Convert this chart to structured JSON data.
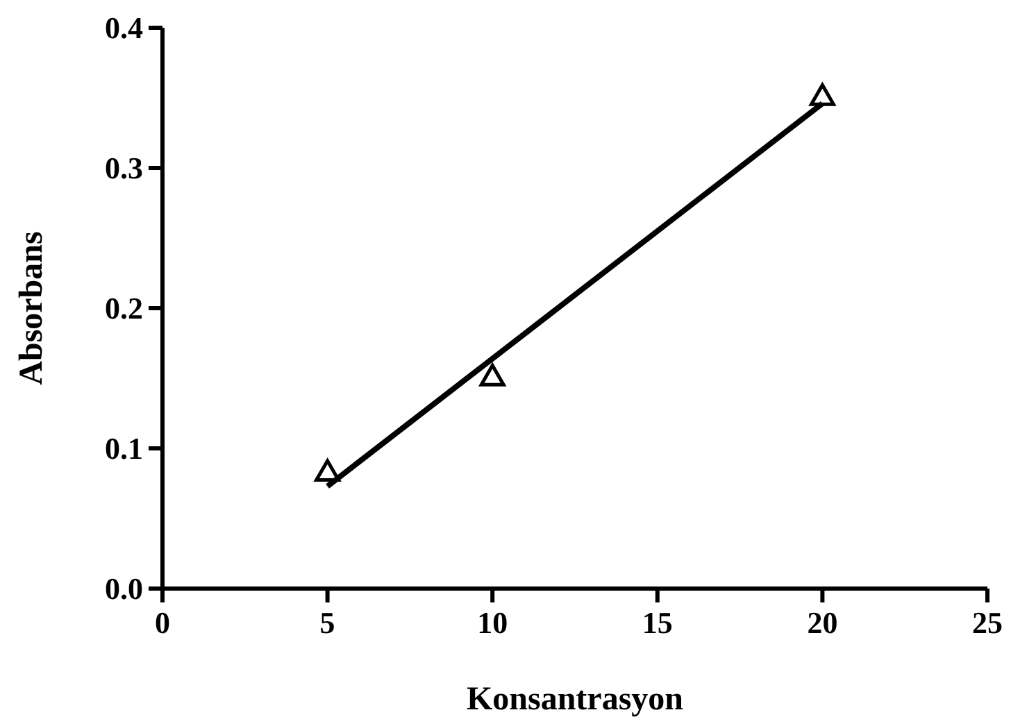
{
  "chart_data": {
    "type": "scatter",
    "xlabel": "Konsantrasyon",
    "ylabel": "Absorbans",
    "xlim": [
      0,
      25
    ],
    "ylim": [
      0,
      0.4
    ],
    "xticks": [
      0,
      5,
      10,
      15,
      20,
      25
    ],
    "yticks": [
      {
        "value": 0,
        "label": "0.0"
      },
      0.1,
      0.2,
      0.3,
      0.4
    ],
    "grid": false,
    "marker": "triangle",
    "series": [
      {
        "color": "#000000",
        "x": [
          5,
          10,
          20
        ],
        "values": [
          0.082,
          0.15,
          0.35
        ]
      },
      {
        "type": "line",
        "color": "#000000",
        "x": [
          5,
          20
        ],
        "values": [
          0.073,
          0.346
        ],
        "marker": "none",
        "line_style": "solid"
      }
    ]
  }
}
